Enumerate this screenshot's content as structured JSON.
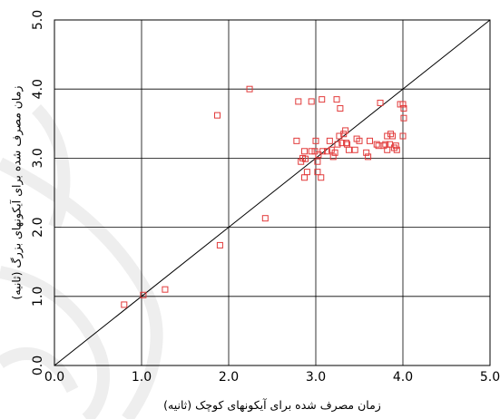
{
  "chart_data": {
    "type": "scatter",
    "xlabel": "زمان مصرف شده برای آیکونهای کوچک (ثانیه)",
    "ylabel": "زمان مصرف شده برای آیکونهای بزرگ (ثانیه)",
    "xlim": [
      0,
      5
    ],
    "ylim": [
      0,
      5
    ],
    "x_ticks": [
      "0.0",
      "1.0",
      "2.0",
      "3.0",
      "4.0",
      "5.0"
    ],
    "y_ticks": [
      "0.0",
      "1.0",
      "2.0",
      "3.0",
      "4.0",
      "5.0"
    ],
    "grid": true,
    "reference_line": "y = x",
    "marker": "hollow-square",
    "marker_color": "#e23b3b",
    "points": [
      [
        0.8,
        0.88
      ],
      [
        1.02,
        1.02
      ],
      [
        1.27,
        1.1
      ],
      [
        1.87,
        3.62
      ],
      [
        1.9,
        1.74
      ],
      [
        2.24,
        4.0
      ],
      [
        2.42,
        2.13
      ],
      [
        2.78,
        3.25
      ],
      [
        2.8,
        3.82
      ],
      [
        2.83,
        2.95
      ],
      [
        2.85,
        3.0
      ],
      [
        2.87,
        3.1
      ],
      [
        2.87,
        2.72
      ],
      [
        2.88,
        2.99
      ],
      [
        2.9,
        2.8
      ],
      [
        2.95,
        3.82
      ],
      [
        2.95,
        3.1
      ],
      [
        2.99,
        3.1
      ],
      [
        3.0,
        3.25
      ],
      [
        3.02,
        2.95
      ],
      [
        3.02,
        2.8
      ],
      [
        3.03,
        3.05
      ],
      [
        3.06,
        2.72
      ],
      [
        3.07,
        3.85
      ],
      [
        3.08,
        3.1
      ],
      [
        3.13,
        3.1
      ],
      [
        3.16,
        3.25
      ],
      [
        3.18,
        3.12
      ],
      [
        3.2,
        3.02
      ],
      [
        3.22,
        3.08
      ],
      [
        3.24,
        3.85
      ],
      [
        3.25,
        3.2
      ],
      [
        3.27,
        3.32
      ],
      [
        3.28,
        3.72
      ],
      [
        3.3,
        3.22
      ],
      [
        3.32,
        3.35
      ],
      [
        3.34,
        3.4
      ],
      [
        3.35,
        3.22
      ],
      [
        3.36,
        3.2
      ],
      [
        3.38,
        3.12
      ],
      [
        3.45,
        3.12
      ],
      [
        3.47,
        3.28
      ],
      [
        3.5,
        3.25
      ],
      [
        3.58,
        3.08
      ],
      [
        3.6,
        3.02
      ],
      [
        3.62,
        3.25
      ],
      [
        3.7,
        3.2
      ],
      [
        3.72,
        3.18
      ],
      [
        3.74,
        3.8
      ],
      [
        3.78,
        3.18
      ],
      [
        3.8,
        3.2
      ],
      [
        3.82,
        3.12
      ],
      [
        3.82,
        3.32
      ],
      [
        3.85,
        3.2
      ],
      [
        3.86,
        3.35
      ],
      [
        3.88,
        3.32
      ],
      [
        3.9,
        3.15
      ],
      [
        3.92,
        3.18
      ],
      [
        3.93,
        3.12
      ],
      [
        3.97,
        3.78
      ],
      [
        4.0,
        3.32
      ],
      [
        4.01,
        3.72
      ],
      [
        4.01,
        3.58
      ],
      [
        4.0,
        3.78
      ]
    ]
  },
  "colors": {
    "background": "#ffffff",
    "axis": "#000000",
    "grid": "#000000",
    "reference_line": "#000000",
    "marker": "#e23b3b",
    "watermark": "#c9c9c9"
  }
}
